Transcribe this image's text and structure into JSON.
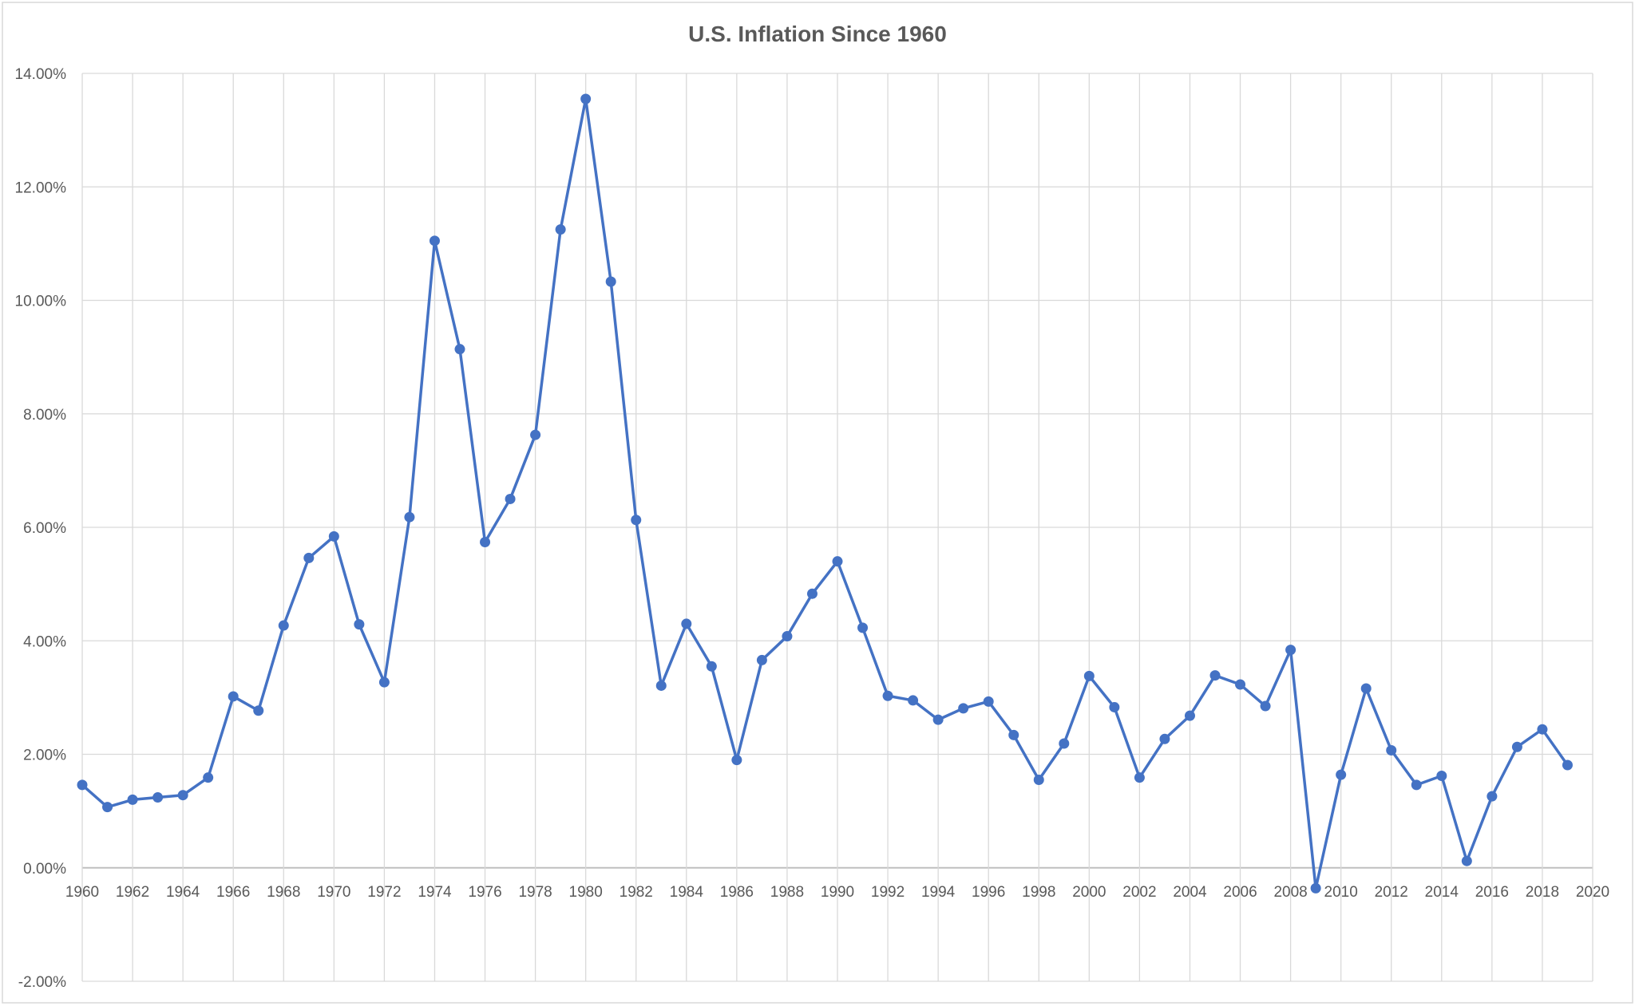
{
  "chart_data": {
    "type": "line",
    "title": "U.S. Inflation Since 1960",
    "xlabel": "",
    "ylabel": "",
    "xlim": [
      1960,
      2020
    ],
    "ylim": [
      -0.02,
      0.14
    ],
    "x_ticks": [
      1960,
      1962,
      1964,
      1966,
      1968,
      1970,
      1972,
      1974,
      1976,
      1978,
      1980,
      1982,
      1984,
      1986,
      1988,
      1990,
      1992,
      1994,
      1996,
      1998,
      2000,
      2002,
      2004,
      2006,
      2008,
      2010,
      2012,
      2014,
      2016,
      2018,
      2020
    ],
    "y_ticks": [
      -0.02,
      0,
      0.02,
      0.04,
      0.06,
      0.08,
      0.1,
      0.12,
      0.14
    ],
    "y_tick_labels": [
      "-2.00%",
      "0.00%",
      "2.00%",
      "4.00%",
      "6.00%",
      "8.00%",
      "10.00%",
      "12.00%",
      "14.00%"
    ],
    "grid": true,
    "line_color": "#4472C4",
    "x": [
      1960,
      1961,
      1962,
      1963,
      1964,
      1965,
      1966,
      1967,
      1968,
      1969,
      1970,
      1971,
      1972,
      1973,
      1974,
      1975,
      1976,
      1977,
      1978,
      1979,
      1980,
      1981,
      1982,
      1983,
      1984,
      1985,
      1986,
      1987,
      1988,
      1989,
      1990,
      1991,
      1992,
      1993,
      1994,
      1995,
      1996,
      1997,
      1998,
      1999,
      2000,
      2001,
      2002,
      2003,
      2004,
      2005,
      2006,
      2007,
      2008,
      2009,
      2010,
      2011,
      2012,
      2013,
      2014,
      2015,
      2016,
      2017,
      2018,
      2019
    ],
    "values": [
      0.0146,
      0.0107,
      0.012,
      0.0124,
      0.0128,
      0.0159,
      0.0302,
      0.0277,
      0.0427,
      0.0546,
      0.0584,
      0.0429,
      0.0327,
      0.0618,
      0.1105,
      0.0914,
      0.0574,
      0.065,
      0.0763,
      0.1125,
      0.1355,
      0.1033,
      0.0613,
      0.0321,
      0.043,
      0.0355,
      0.019,
      0.0366,
      0.0408,
      0.0483,
      0.054,
      0.0423,
      0.0303,
      0.0295,
      0.0261,
      0.0281,
      0.0293,
      0.0234,
      0.0155,
      0.0219,
      0.0338,
      0.0283,
      0.0159,
      0.0227,
      0.0268,
      0.0339,
      0.0323,
      0.0285,
      0.0384,
      -0.0036,
      0.0164,
      0.0316,
      0.0207,
      0.0146,
      0.0162,
      0.0012,
      0.0126,
      0.0213,
      0.0244,
      0.0181
    ]
  }
}
